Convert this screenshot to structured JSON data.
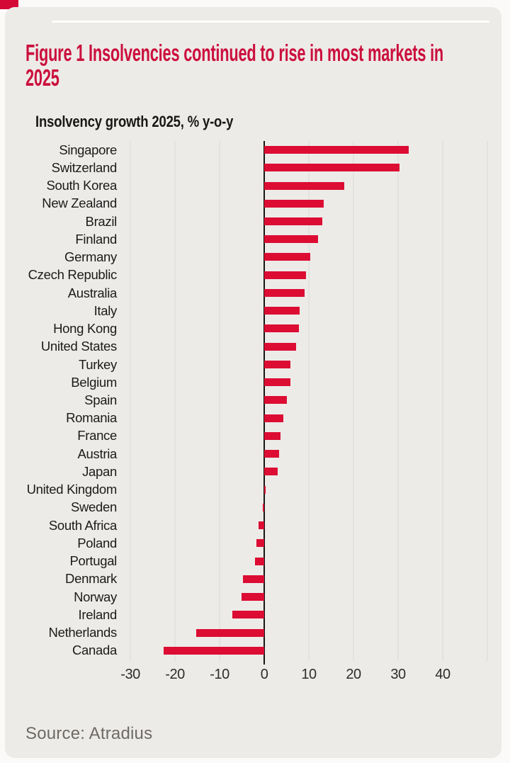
{
  "figure": {
    "title": "Figure 1 Insolvencies continued to rise in most markets in 2025",
    "source": "Source: Atradius"
  },
  "chart_data": {
    "type": "bar",
    "orientation": "horizontal",
    "title": "Insolvency growth 2025, % y-o-y",
    "categories": [
      "Singapore",
      "Switzerland",
      "South Korea",
      "New Zealand",
      "Brazil",
      "Finland",
      "Germany",
      "Czech Republic",
      "Australia",
      "Italy",
      "Hong Kong",
      "United States",
      "Turkey",
      "Belgium",
      "Spain",
      "Romania",
      "France",
      "Austria",
      "Japan",
      "United Kingdom",
      "Sweden",
      "South Africa",
      "Poland",
      "Portugal",
      "Denmark",
      "Norway",
      "Ireland",
      "Netherlands",
      "Canada"
    ],
    "values": [
      32.4,
      30.3,
      17.9,
      13.4,
      13.0,
      12.1,
      10.3,
      9.3,
      9.0,
      8.0,
      7.7,
      7.1,
      5.9,
      5.8,
      5.0,
      4.3,
      3.7,
      3.4,
      3.0,
      0.3,
      -0.3,
      -1.2,
      -1.7,
      -2.1,
      -4.8,
      -5.1,
      -7.2,
      -15.2,
      -22.6
    ],
    "xlabel": "",
    "ylabel": "",
    "xlim": [
      -35,
      50
    ],
    "x_ticks": [
      -30,
      -20,
      -10,
      0,
      10,
      20,
      30,
      40
    ],
    "x_tick_labels": [
      "-30",
      "-20",
      "-10",
      "0",
      "10",
      "20",
      "30",
      "40"
    ],
    "gridlines_at": [
      -30,
      -20,
      -10,
      10,
      20,
      30,
      40,
      50
    ],
    "grid": "vertical-faint",
    "legend_position": "none",
    "bar_color": "#dc0c33",
    "axis_color": "#171615"
  },
  "colors": {
    "title_red": "#cb0f3d",
    "corner_accent_red": "#d40936",
    "card_background": "#edebe8",
    "page_background": "#fbfaf9",
    "gridline_gray": "#e4e2de",
    "source_gray": "#6d6a66"
  }
}
